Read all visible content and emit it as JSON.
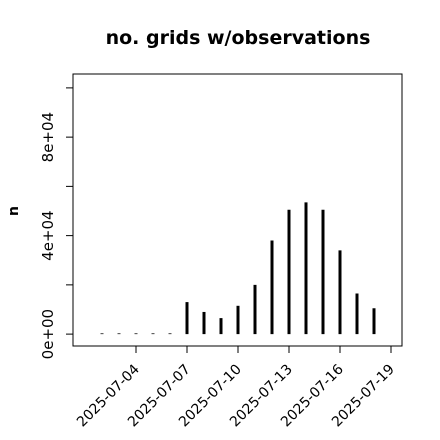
{
  "chart_data": {
    "type": "bar",
    "title": "no. grids w/observations",
    "xlabel": "",
    "ylabel": "n",
    "ylim": [
      -3000,
      103000
    ],
    "y_ticks": [
      0,
      20000,
      40000,
      60000,
      80000,
      100000
    ],
    "y_tick_labels": [
      "0e+00",
      "",
      "4e+04",
      "",
      "8e+04",
      ""
    ],
    "x_tick_labels": [
      "2025-07-04",
      "2025-07-07",
      "2025-07-10",
      "2025-07-13",
      "2025-07-16",
      "2025-07-19"
    ],
    "x_tick_colors": [
      "#000000",
      "#000000",
      "#228b22",
      "#000000",
      "#000000",
      "#000000"
    ],
    "categories": [
      "2025-07-02",
      "2025-07-03",
      "2025-07-04",
      "2025-07-05",
      "2025-07-06",
      "2025-07-07",
      "2025-07-08",
      "2025-07-09",
      "2025-07-10",
      "2025-07-11",
      "2025-07-12",
      "2025-07-13",
      "2025-07-14",
      "2025-07-15",
      "2025-07-16",
      "2025-07-17",
      "2025-07-18",
      "2025-07-19"
    ],
    "values": [
      300,
      300,
      300,
      300,
      300,
      13000,
      9000,
      6500,
      11500,
      20000,
      38000,
      50500,
      53500,
      50500,
      34000,
      16500,
      10500,
      0
    ],
    "grid": false,
    "legend": "none"
  }
}
